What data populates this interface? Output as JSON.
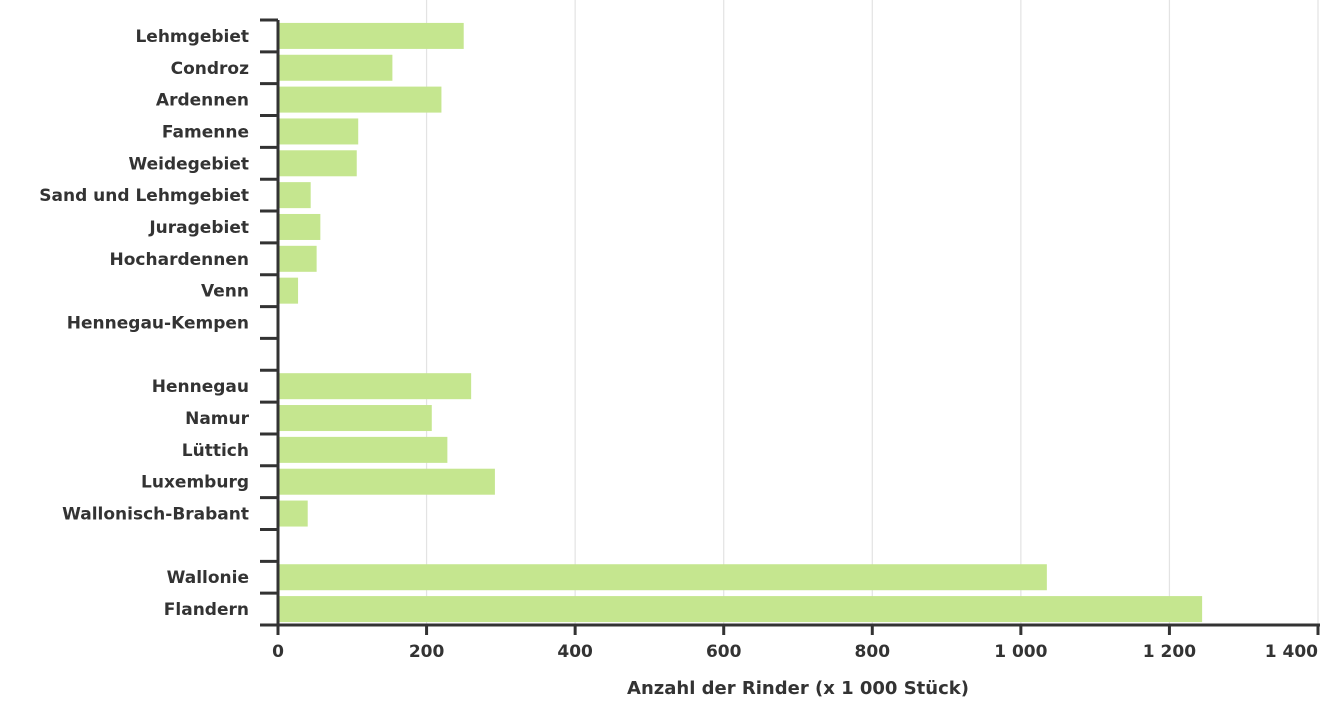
{
  "chart_data": {
    "type": "bar",
    "orientation": "horizontal",
    "categories": [
      "Lehmgebiet",
      "Condroz",
      "Ardennen",
      "Famenne",
      "Weidegebiet",
      "Sand und Lehmgebiet",
      "Juragebiet",
      "Hochardennen",
      "Venn",
      "Hennegau-Kempen",
      "",
      "Hennegau",
      "Namur",
      "Lüttich",
      "Luxemburg",
      "Wallonisch-Brabant",
      "",
      "Wallonie",
      "Flandern"
    ],
    "values": [
      250,
      154,
      220,
      108,
      106,
      44,
      57,
      52,
      27,
      0,
      0,
      260,
      207,
      228,
      292,
      40,
      0,
      1035,
      1244
    ],
    "xlabel": "Anzahl der Rinder (x 1 000 Stück)",
    "ylabel": "",
    "xlim": [
      0,
      1400
    ],
    "x_ticks": [
      0,
      200,
      400,
      600,
      800,
      1000,
      1200,
      1400
    ],
    "x_tick_labels": [
      "0",
      "200",
      "400",
      "600",
      "800",
      "1 000",
      "1 200",
      "1 400"
    ],
    "grid": "vertical",
    "bar_color": "#c5e68f",
    "grid_color": "#e3e3e3",
    "axis_color": "#333333"
  }
}
